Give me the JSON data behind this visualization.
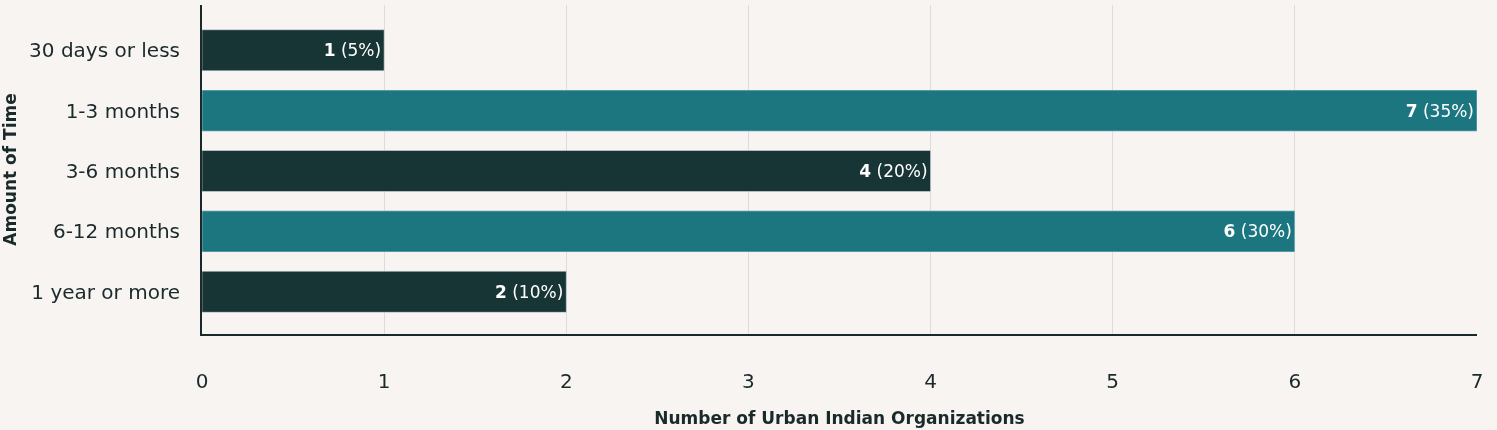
{
  "chart_data": {
    "type": "bar",
    "orientation": "horizontal",
    "xlabel": "Number of Urban Indian Organizations",
    "ylabel": "Amount of Time",
    "categories": [
      "30 days or less",
      "1-3 months",
      "3-6 months",
      "6-12 months",
      "1 year or more"
    ],
    "values": [
      1,
      7,
      4,
      6,
      2
    ],
    "colors": [
      "#173535",
      "#1b7680",
      "#173535",
      "#1b7680",
      "#173535"
    ],
    "value_labels": [
      "1 (5%)",
      "7 (35%)",
      "4 (20%)",
      "6 (30%)",
      "2 (10%)"
    ],
    "xlim": [
      0,
      7
    ],
    "xticks": [
      0,
      1,
      2,
      3,
      4,
      5,
      6,
      7
    ],
    "grid": "x",
    "legend": false
  }
}
